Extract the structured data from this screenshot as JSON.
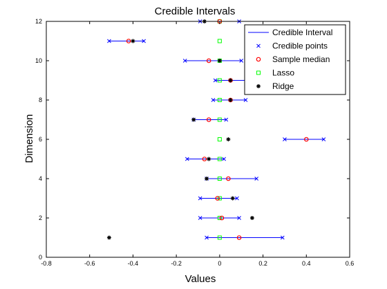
{
  "chart_data": {
    "type": "scatter",
    "title": "Credible Intervals",
    "xlabel": "Values",
    "ylabel": "Dimension",
    "xlim": [
      -0.8,
      0.6
    ],
    "ylim": [
      0,
      12
    ],
    "xticks": [
      "-0.8",
      "-0.6",
      "-0.4",
      "-0.2",
      "0",
      "0.2",
      "0.4",
      "0.6"
    ],
    "yticks": [
      "0",
      "2",
      "4",
      "6",
      "8",
      "10",
      "12"
    ],
    "grid": false,
    "legend_position": "top-right",
    "legend": [
      {
        "name": "Credible Interval",
        "marker": "line",
        "color": "#0000ff"
      },
      {
        "name": "Credible points",
        "marker": "x",
        "color": "#0000ff"
      },
      {
        "name": "Sample median",
        "marker": "circle",
        "color": "#ff0000"
      },
      {
        "name": "Lasso",
        "marker": "square",
        "color": "#00ff00"
      },
      {
        "name": "Ridge",
        "marker": "star",
        "color": "#000000"
      }
    ],
    "dimensions": [
      {
        "dim": 1,
        "lo": -0.06,
        "hi": 0.29,
        "median": 0.09,
        "lasso": 0.0,
        "ridge": -0.51
      },
      {
        "dim": 2,
        "lo": -0.09,
        "hi": 0.09,
        "median": 0.01,
        "lasso": 0.0,
        "ridge": 0.15
      },
      {
        "dim": 3,
        "lo": -0.09,
        "hi": 0.08,
        "median": -0.01,
        "lasso": 0.0,
        "ridge": 0.06
      },
      {
        "dim": 4,
        "lo": -0.06,
        "hi": 0.17,
        "median": 0.04,
        "lasso": 0.0,
        "ridge": -0.06
      },
      {
        "dim": 5,
        "lo": -0.15,
        "hi": 0.02,
        "median": -0.07,
        "lasso": 0.0,
        "ridge": -0.05
      },
      {
        "dim": 6,
        "lo": 0.3,
        "hi": 0.48,
        "median": 0.4,
        "lasso": 0.0,
        "ridge": 0.04
      },
      {
        "dim": 7,
        "lo": -0.12,
        "hi": 0.03,
        "median": -0.05,
        "lasso": 0.0,
        "ridge": -0.12
      },
      {
        "dim": 8,
        "lo": -0.03,
        "hi": 0.12,
        "median": 0.05,
        "lasso": 0.0,
        "ridge": 0.05
      },
      {
        "dim": 9,
        "lo": -0.02,
        "hi": 0.13,
        "median": 0.05,
        "lasso": 0.0,
        "ridge": 0.05
      },
      {
        "dim": 10,
        "lo": -0.16,
        "hi": 0.1,
        "median": -0.05,
        "lasso": 0.0,
        "ridge": 0.0
      },
      {
        "dim": 11,
        "lo": -0.51,
        "hi": -0.35,
        "median": -0.42,
        "lasso": 0.0,
        "ridge": -0.4
      },
      {
        "dim": 12,
        "lo": -0.09,
        "hi": 0.09,
        "median": 0.0,
        "lasso": 0.0,
        "ridge": -0.07
      }
    ]
  }
}
